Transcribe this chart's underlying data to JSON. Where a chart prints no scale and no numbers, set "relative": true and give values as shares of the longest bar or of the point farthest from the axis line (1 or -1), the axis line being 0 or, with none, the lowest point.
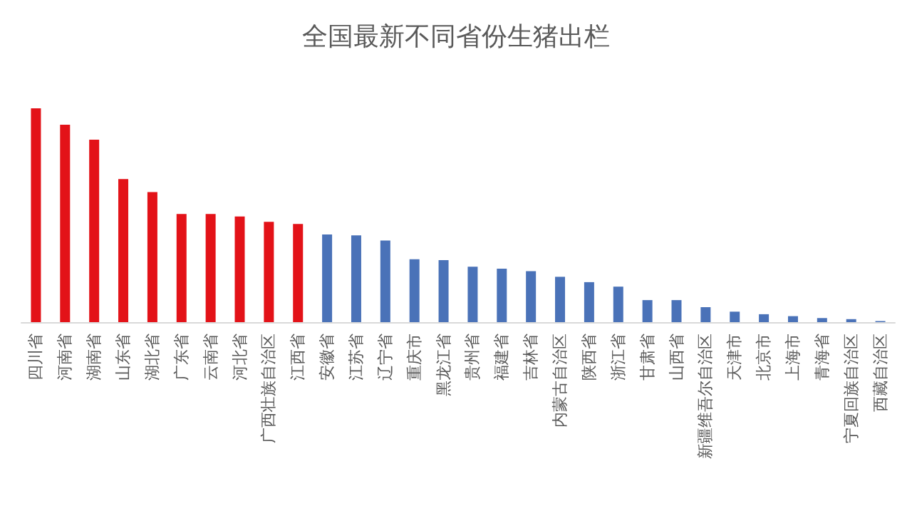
{
  "chart_data": {
    "type": "bar",
    "title": "全国最新不同省份生猪出栏",
    "relative": true,
    "categories": [
      "四川省",
      "河南省",
      "湖南省",
      "山东省",
      "湖北省",
      "广东省",
      "云南省",
      "河北省",
      "广西壮族自治区",
      "江西省",
      "安徽省",
      "江苏省",
      "辽宁省",
      "重庆市",
      "黑龙江省",
      "贵州省",
      "福建省",
      "吉林省",
      "内蒙古自治区",
      "陕西省",
      "浙江省",
      "甘肃省",
      "山西省",
      "新疆维吾尔自治区",
      "天津市",
      "北京市",
      "上海市",
      "青海省",
      "宁夏回族自治区",
      "西藏自治区"
    ],
    "values": [
      1,
      0.923,
      0.853,
      0.669,
      0.608,
      0.506,
      0.506,
      0.494,
      0.469,
      0.459,
      0.41,
      0.406,
      0.382,
      0.294,
      0.29,
      0.259,
      0.25,
      0.238,
      0.212,
      0.187,
      0.166,
      0.103,
      0.103,
      0.07,
      0.049,
      0.037,
      0.028,
      0.019,
      0.014,
      0.005
    ],
    "colors": [
      "#e31218",
      "#e31218",
      "#e31218",
      "#e31218",
      "#e31218",
      "#e31218",
      "#e31218",
      "#e31218",
      "#e31218",
      "#e31218",
      "#4a72b8",
      "#4a72b8",
      "#4a72b8",
      "#4a72b8",
      "#4a72b8",
      "#4a72b8",
      "#4a72b8",
      "#4a72b8",
      "#4a72b8",
      "#4a72b8",
      "#4a72b8",
      "#4a72b8",
      "#4a72b8",
      "#4a72b8",
      "#4a72b8",
      "#4a72b8",
      "#4a72b8",
      "#4a72b8",
      "#4a72b8",
      "#4a72b8"
    ],
    "grid": false
  }
}
